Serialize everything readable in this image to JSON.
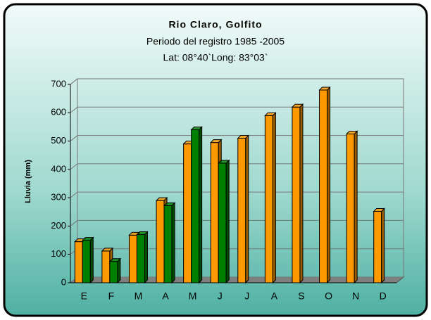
{
  "chart_data": {
    "type": "bar",
    "title": "Rio Claro, Golfito",
    "subtitle": [
      "Periodo del registro 1985 -2005",
      "Lat: 08°40`Long: 83°03`"
    ],
    "y_label": "Lluvia (mm)",
    "categories": [
      "E",
      "F",
      "M",
      "A",
      "M",
      "J",
      "J",
      "A",
      "S",
      "O",
      "N",
      "D"
    ],
    "series": [
      {
        "color": "#ff9900",
        "values": [
          145,
          112,
          168,
          290,
          490,
          495,
          510,
          590,
          620,
          680,
          525,
          252
        ]
      },
      {
        "color": "#008000",
        "values": [
          150,
          75,
          170,
          272,
          540,
          422,
          null,
          null,
          null,
          null,
          null,
          null
        ]
      }
    ],
    "ylim": [
      0,
      700
    ],
    "yticks": [
      0,
      100,
      200,
      300,
      400,
      500,
      600,
      700
    ],
    "grid": true
  }
}
